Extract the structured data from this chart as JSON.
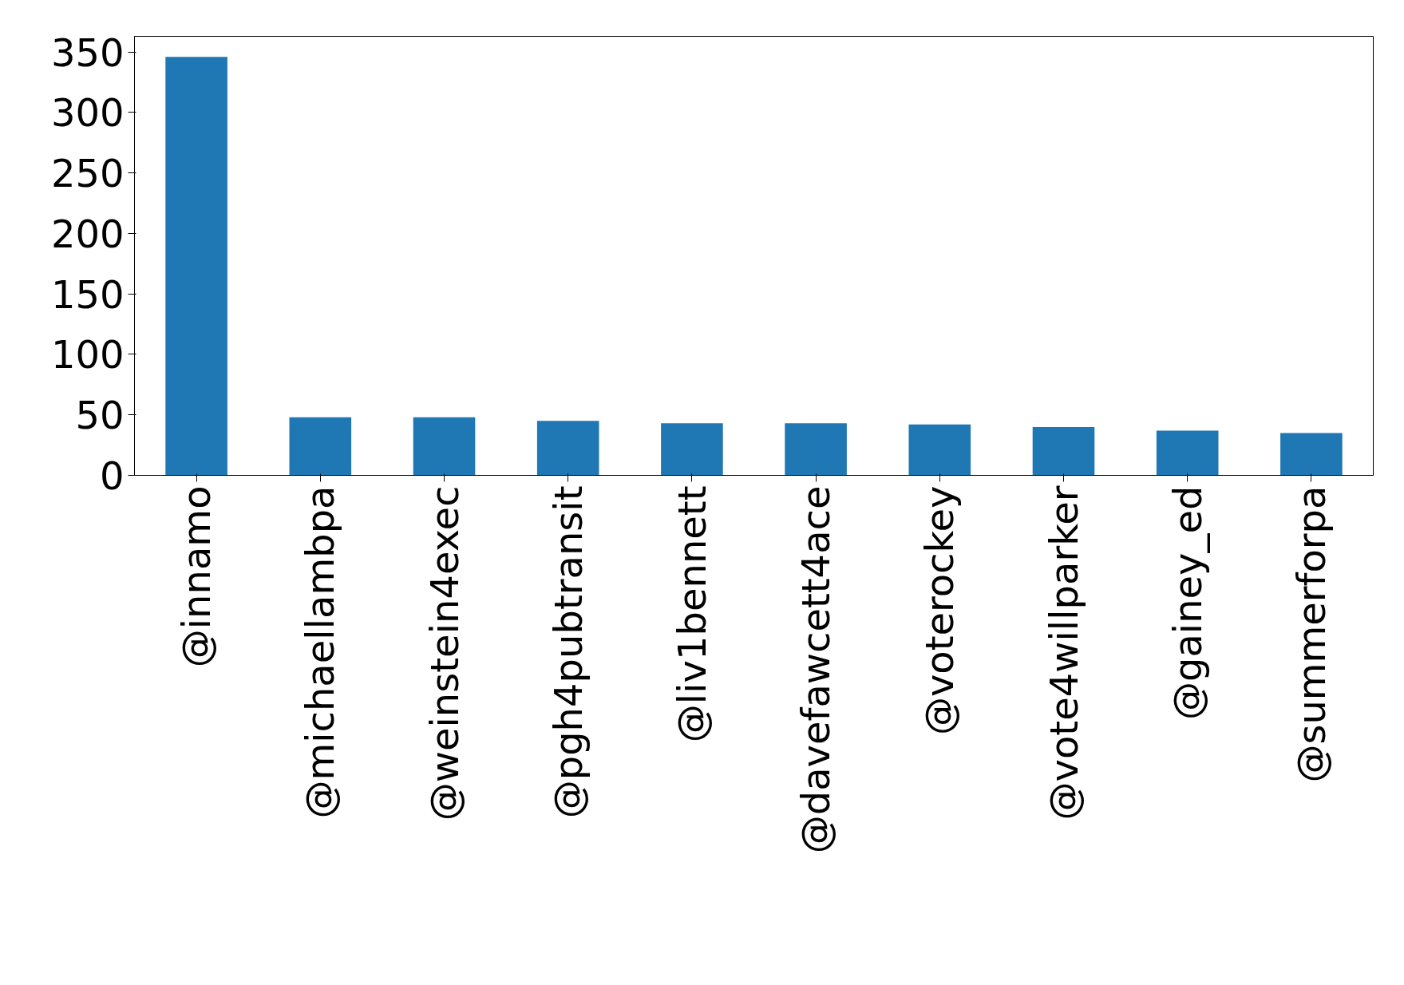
{
  "chart_data": {
    "type": "bar",
    "categories": [
      "@innamo",
      "@michaellambpa",
      "@weinstein4exec",
      "@pgh4pubtransit",
      "@liv1bennett",
      "@davefawcett4ace",
      "@voterockey",
      "@vote4willparker",
      "@gainey_ed",
      "@summerforpa"
    ],
    "values": [
      346,
      48,
      48,
      45,
      43,
      43,
      42,
      40,
      37,
      35
    ],
    "color": "#1f77b4",
    "ylim": [
      0,
      363
    ],
    "yticks": [
      0,
      50,
      100,
      150,
      200,
      250,
      300,
      350
    ],
    "grid": false
  }
}
